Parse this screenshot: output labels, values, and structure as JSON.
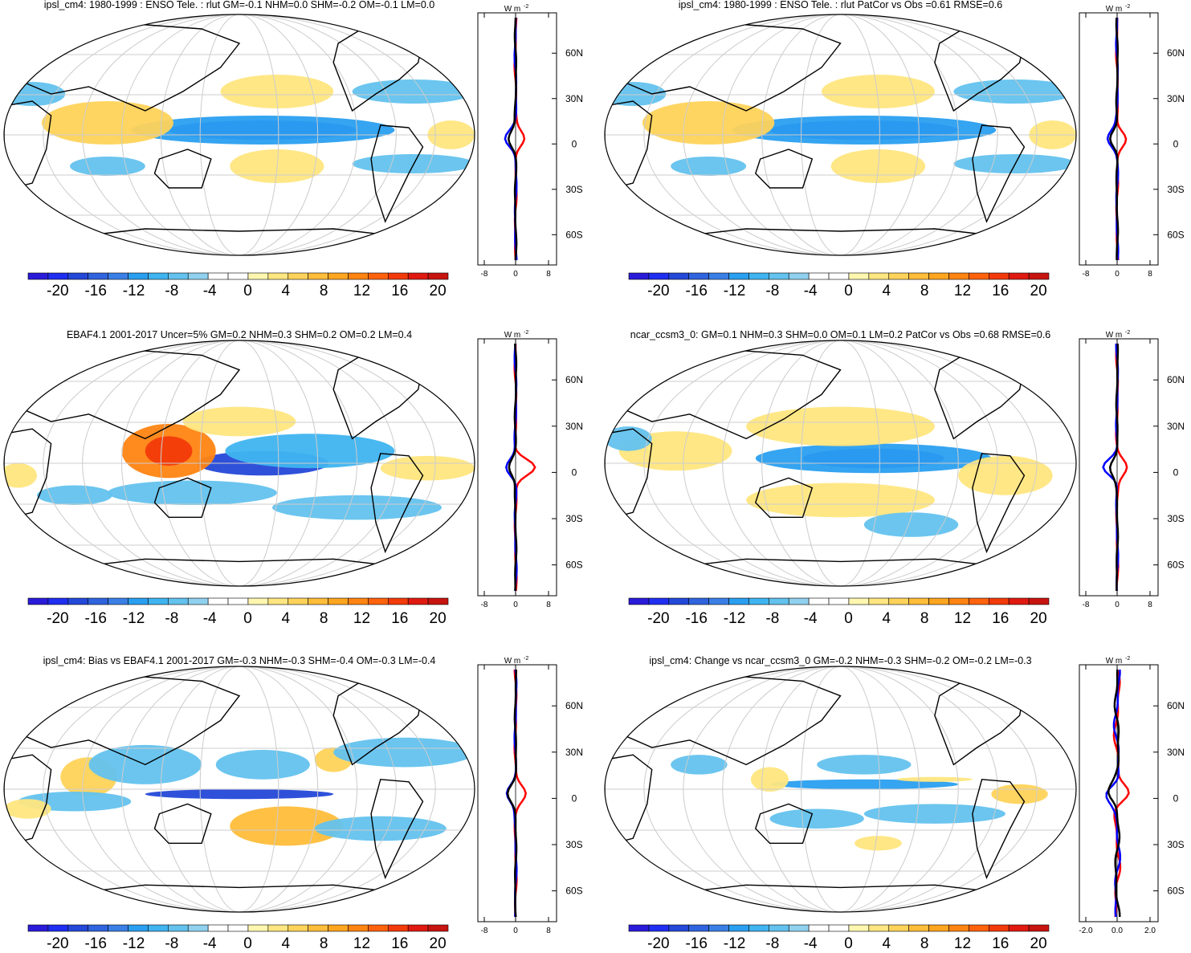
{
  "colorbar": {
    "colors": [
      "#2a1bd9",
      "#1f2ef0",
      "#2448d8",
      "#2f64de",
      "#3a7fe6",
      "#2a9ff0",
      "#3fb4f0",
      "#63c2ee",
      "#8fd1ee",
      "#ffffff",
      "#ffffff",
      "#fff7b0",
      "#ffe680",
      "#ffd35a",
      "#ffbd3a",
      "#ffa51f",
      "#ff8412",
      "#ff620d",
      "#f33a0a",
      "#e01a10",
      "#c8140f"
    ],
    "labels": [
      "-20",
      "-16",
      "-12",
      "-8",
      "-4",
      "0",
      "4",
      "8",
      "12",
      "16",
      "20"
    ]
  },
  "lat_labels": [
    "60N",
    "30N",
    "0",
    "30S",
    "60S"
  ],
  "zonal_unit": "W m",
  "zonal_unit_sup": "-2",
  "panels": [
    {
      "title": "ipsl_cm4: 1980-1999 : ENSO Tele. : rlut GM=-0.1 NHM=0.0 SHM=-0.2 OM=-0.1 LM=0.0",
      "zonal_xticks": [
        "-8",
        "0",
        "8"
      ]
    },
    {
      "title": "ipsl_cm4: 1980-1999 : ENSO Tele. : rlut PatCor vs Obs =0.61 RMSE=0.6",
      "zonal_xticks": [
        "-8",
        "0",
        "8"
      ]
    },
    {
      "title": "EBAF4.1 2001-2017 Uncer=5% GM=0.2 NHM=0.3 SHM=0.2 OM=0.2 LM=0.4",
      "zonal_xticks": [
        "-8",
        "0",
        "8"
      ]
    },
    {
      "title": "ncar_ccsm3_0: GM=0.1 NHM=0.3 SHM=0.0 OM=0.1 LM=0.2 PatCor vs Obs =0.68 RMSE=0.6",
      "zonal_xticks": [
        "-8",
        "0",
        "8"
      ]
    },
    {
      "title": "ipsl_cm4: Bias vs EBAF4.1 2001-2017 GM=-0.3 NHM=-0.3 SHM=-0.4 OM=-0.3 LM=-0.4",
      "zonal_xticks": [
        "-8",
        "0",
        "8"
      ]
    },
    {
      "title": "ipsl_cm4: Change vs ncar_ccsm3_0 GM=-0.2 NHM=-0.3 SHM=-0.2 OM=-0.2 LM=-0.3",
      "zonal_xticks": [
        "-2.0",
        "0.0",
        "2.0"
      ]
    }
  ]
}
